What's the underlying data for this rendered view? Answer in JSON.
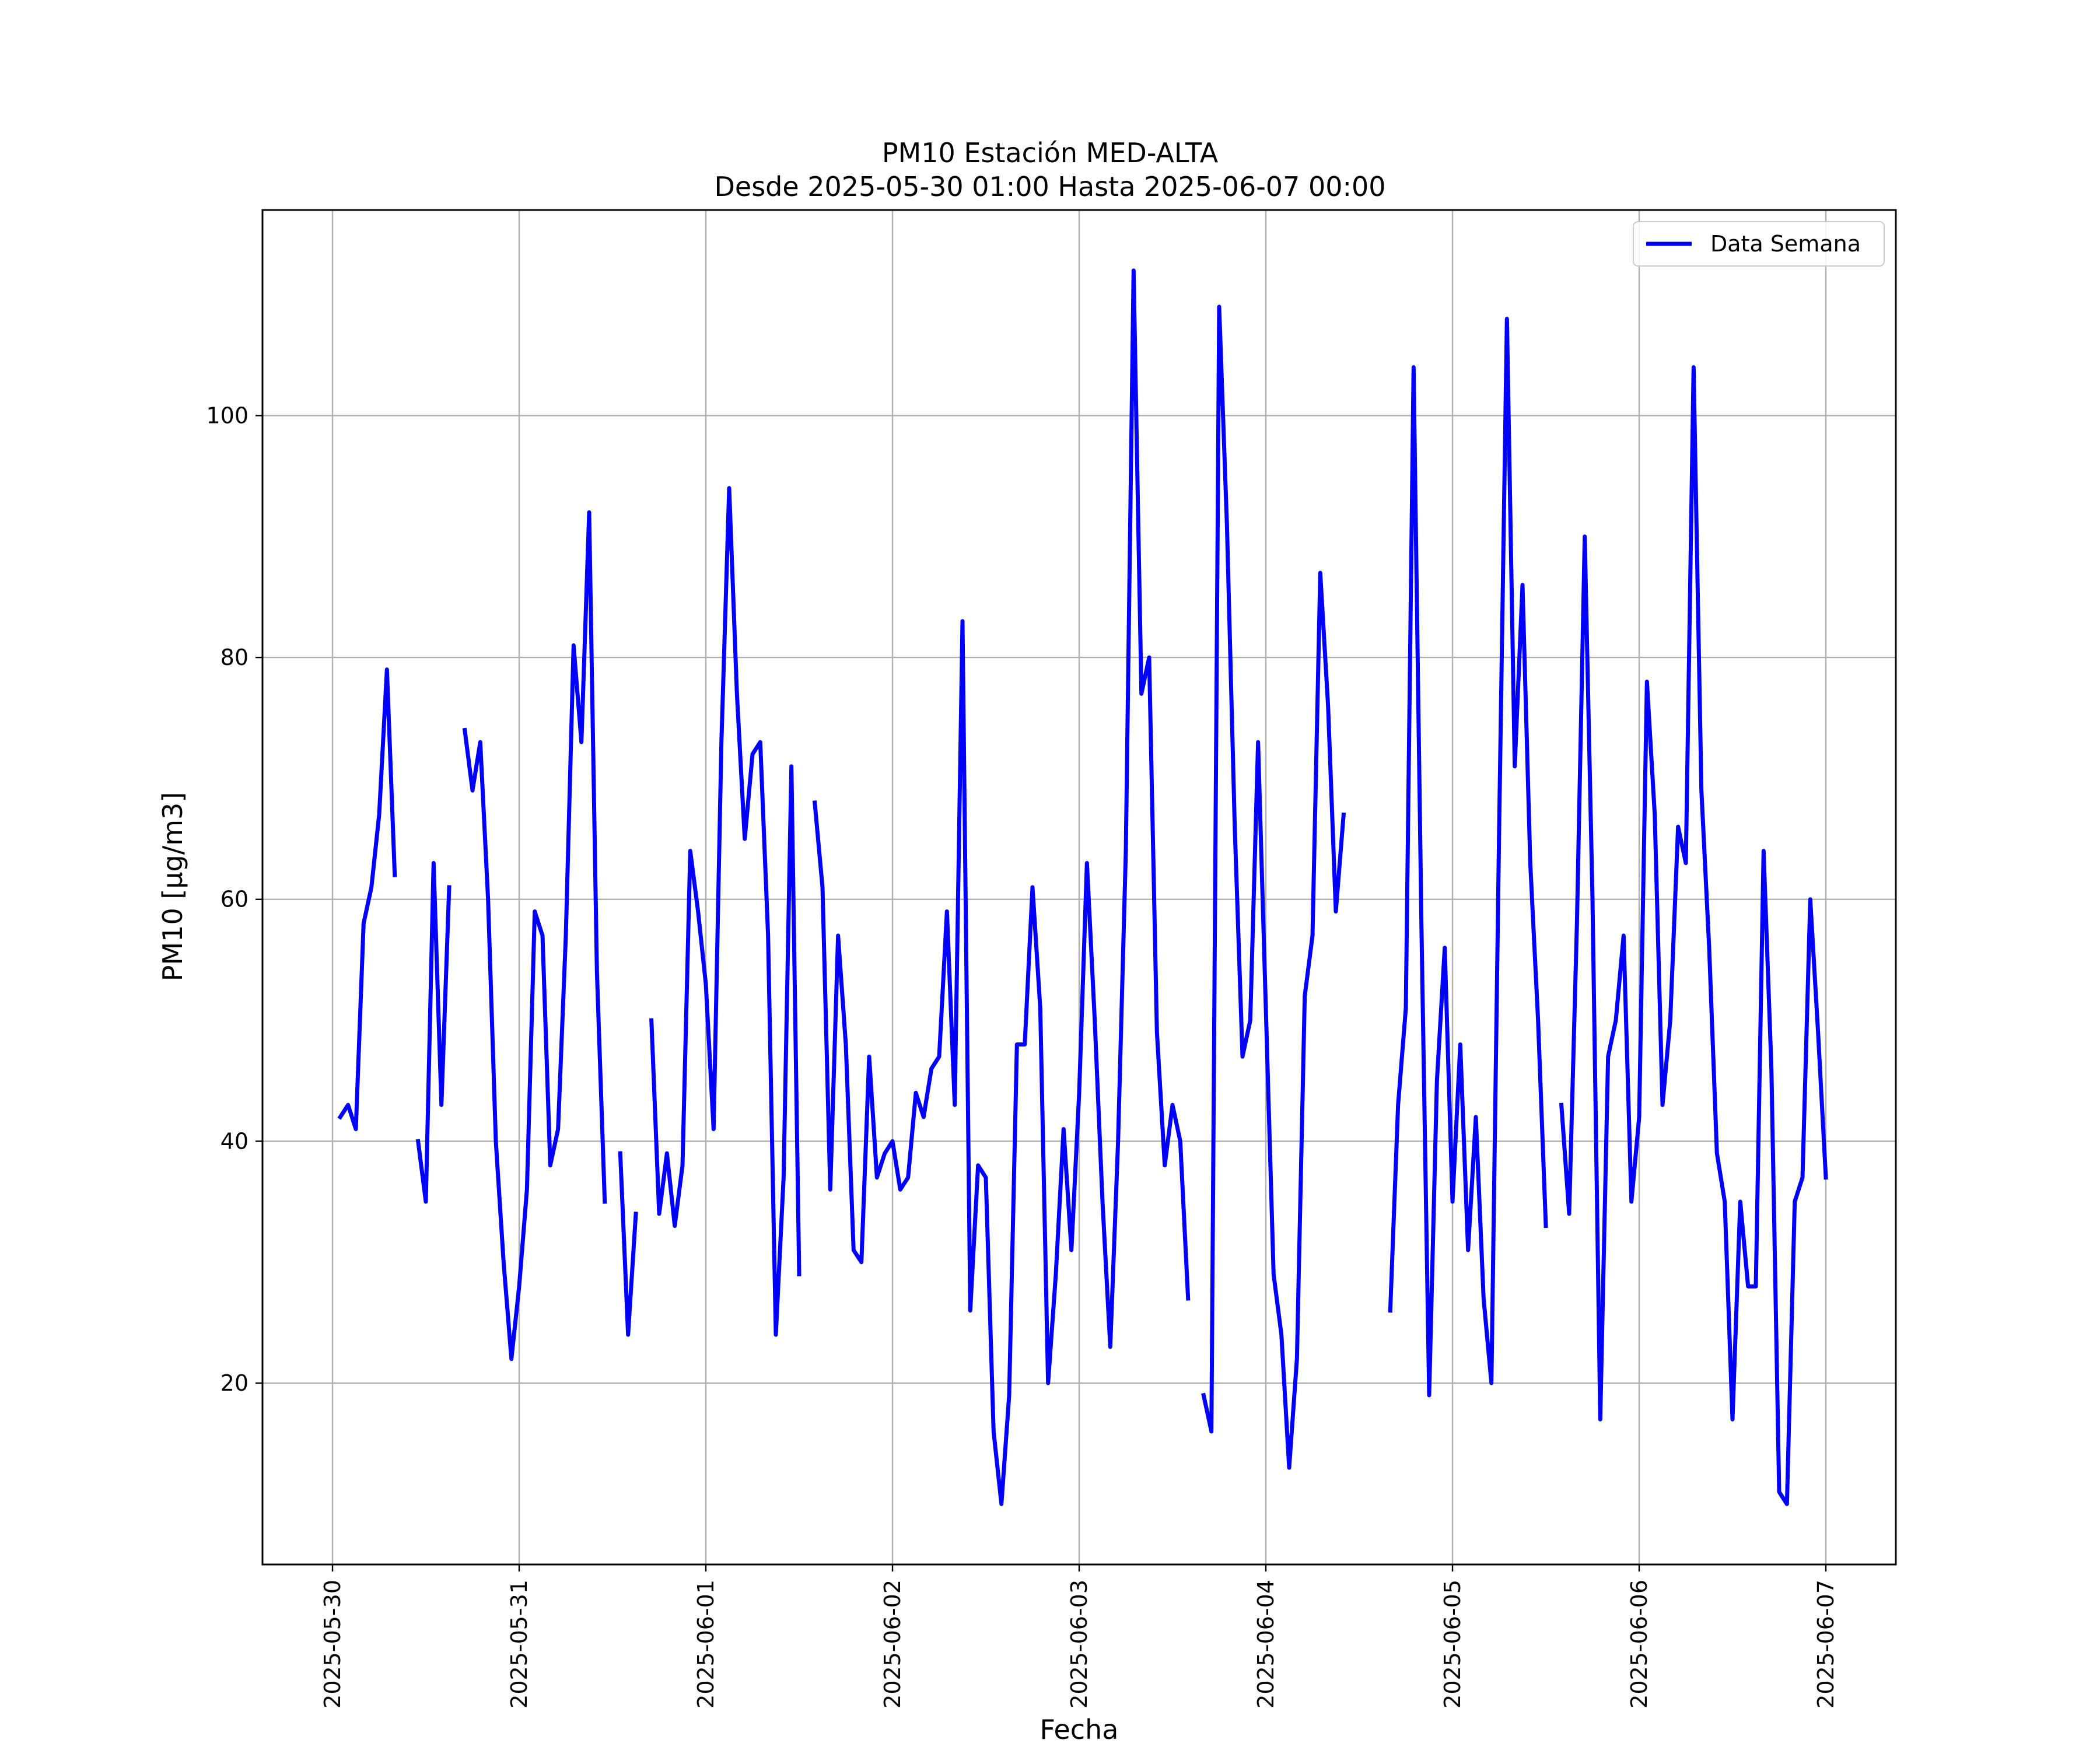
{
  "chart_data": {
    "type": "line",
    "title": "PM10 Estación MED-ALTA",
    "subtitle": "Desde 2025-05-30 01:00 Hasta 2025-06-07 00:00",
    "xlabel": "Fecha",
    "ylabel": "PM10 [μg/m3]",
    "x_ticks": [
      "2025-05-30",
      "2025-05-31",
      "2025-06-01",
      "2025-06-02",
      "2025-06-03",
      "2025-06-04",
      "2025-06-05",
      "2025-06-06",
      "2025-06-07"
    ],
    "y_ticks": [
      20,
      40,
      60,
      80,
      100
    ],
    "xlim": [
      "2025-05-29 15:00",
      "2025-06-07 09:00"
    ],
    "ylim": [
      5,
      117
    ],
    "grid": true,
    "legend_position": "top-right",
    "line_color": "#0000ff",
    "series": [
      {
        "name": "Data Semana",
        "points": [
          [
            "2025-05-30 01:00",
            42
          ],
          [
            "2025-05-30 02:00",
            43
          ],
          [
            "2025-05-30 03:00",
            41
          ],
          [
            "2025-05-30 04:00",
            58
          ],
          [
            "2025-05-30 05:00",
            61
          ],
          [
            "2025-05-30 06:00",
            67
          ],
          [
            "2025-05-30 07:00",
            79
          ],
          [
            "2025-05-30 08:00",
            62
          ],
          [
            "2025-05-30 09:00",
            null
          ],
          [
            "2025-05-30 10:00",
            null
          ],
          [
            "2025-05-30 11:00",
            40
          ],
          [
            "2025-05-30 12:00",
            35
          ],
          [
            "2025-05-30 13:00",
            63
          ],
          [
            "2025-05-30 14:00",
            43
          ],
          [
            "2025-05-30 15:00",
            61
          ],
          [
            "2025-05-30 16:00",
            null
          ],
          [
            "2025-05-30 17:00",
            74
          ],
          [
            "2025-05-30 18:00",
            69
          ],
          [
            "2025-05-30 19:00",
            73
          ],
          [
            "2025-05-30 20:00",
            60
          ],
          [
            "2025-05-30 21:00",
            40
          ],
          [
            "2025-05-30 22:00",
            30
          ],
          [
            "2025-05-30 23:00",
            22
          ],
          [
            "2025-05-31 00:00",
            28
          ],
          [
            "2025-05-31 01:00",
            36
          ],
          [
            "2025-05-31 02:00",
            59
          ],
          [
            "2025-05-31 03:00",
            57
          ],
          [
            "2025-05-31 04:00",
            38
          ],
          [
            "2025-05-31 05:00",
            41
          ],
          [
            "2025-05-31 06:00",
            57
          ],
          [
            "2025-05-31 07:00",
            81
          ],
          [
            "2025-05-31 08:00",
            73
          ],
          [
            "2025-05-31 09:00",
            92
          ],
          [
            "2025-05-31 10:00",
            54
          ],
          [
            "2025-05-31 11:00",
            35
          ],
          [
            "2025-05-31 12:00",
            null
          ],
          [
            "2025-05-31 13:00",
            39
          ],
          [
            "2025-05-31 14:00",
            24
          ],
          [
            "2025-05-31 15:00",
            34
          ],
          [
            "2025-05-31 16:00",
            null
          ],
          [
            "2025-05-31 17:00",
            50
          ],
          [
            "2025-05-31 18:00",
            34
          ],
          [
            "2025-05-31 19:00",
            39
          ],
          [
            "2025-05-31 20:00",
            33
          ],
          [
            "2025-05-31 21:00",
            38
          ],
          [
            "2025-05-31 22:00",
            64
          ],
          [
            "2025-05-31 23:00",
            59
          ],
          [
            "2025-06-01 00:00",
            53
          ],
          [
            "2025-06-01 01:00",
            41
          ],
          [
            "2025-06-01 02:00",
            73
          ],
          [
            "2025-06-01 03:00",
            94
          ],
          [
            "2025-06-01 04:00",
            77
          ],
          [
            "2025-06-01 05:00",
            65
          ],
          [
            "2025-06-01 06:00",
            72
          ],
          [
            "2025-06-01 07:00",
            73
          ],
          [
            "2025-06-01 08:00",
            57
          ],
          [
            "2025-06-01 09:00",
            24
          ],
          [
            "2025-06-01 10:00",
            37
          ],
          [
            "2025-06-01 11:00",
            71
          ],
          [
            "2025-06-01 12:00",
            29
          ],
          [
            "2025-06-01 13:00",
            null
          ],
          [
            "2025-06-01 14:00",
            68
          ],
          [
            "2025-06-01 15:00",
            61
          ],
          [
            "2025-06-01 16:00",
            36
          ],
          [
            "2025-06-01 17:00",
            57
          ],
          [
            "2025-06-01 18:00",
            48
          ],
          [
            "2025-06-01 19:00",
            31
          ],
          [
            "2025-06-01 20:00",
            30
          ],
          [
            "2025-06-01 21:00",
            47
          ],
          [
            "2025-06-01 22:00",
            37
          ],
          [
            "2025-06-01 23:00",
            39
          ],
          [
            "2025-06-02 00:00",
            40
          ],
          [
            "2025-06-02 01:00",
            36
          ],
          [
            "2025-06-02 02:00",
            37
          ],
          [
            "2025-06-02 03:00",
            44
          ],
          [
            "2025-06-02 04:00",
            42
          ],
          [
            "2025-06-02 05:00",
            46
          ],
          [
            "2025-06-02 06:00",
            47
          ],
          [
            "2025-06-02 07:00",
            59
          ],
          [
            "2025-06-02 08:00",
            43
          ],
          [
            "2025-06-02 09:00",
            83
          ],
          [
            "2025-06-02 10:00",
            26
          ],
          [
            "2025-06-02 11:00",
            38
          ],
          [
            "2025-06-02 12:00",
            37
          ],
          [
            "2025-06-02 13:00",
            16
          ],
          [
            "2025-06-02 14:00",
            10
          ],
          [
            "2025-06-02 15:00",
            19
          ],
          [
            "2025-06-02 16:00",
            48
          ],
          [
            "2025-06-02 17:00",
            48
          ],
          [
            "2025-06-02 18:00",
            61
          ],
          [
            "2025-06-02 19:00",
            51
          ],
          [
            "2025-06-02 20:00",
            20
          ],
          [
            "2025-06-02 21:00",
            29
          ],
          [
            "2025-06-02 22:00",
            41
          ],
          [
            "2025-06-02 23:00",
            31
          ],
          [
            "2025-06-03 00:00",
            44
          ],
          [
            "2025-06-03 01:00",
            63
          ],
          [
            "2025-06-03 02:00",
            50
          ],
          [
            "2025-06-03 03:00",
            35
          ],
          [
            "2025-06-03 04:00",
            23
          ],
          [
            "2025-06-03 05:00",
            40
          ],
          [
            "2025-06-03 06:00",
            64
          ],
          [
            "2025-06-03 07:00",
            112
          ],
          [
            "2025-06-03 08:00",
            77
          ],
          [
            "2025-06-03 09:00",
            80
          ],
          [
            "2025-06-03 10:00",
            49
          ],
          [
            "2025-06-03 11:00",
            38
          ],
          [
            "2025-06-03 12:00",
            43
          ],
          [
            "2025-06-03 13:00",
            40
          ],
          [
            "2025-06-03 14:00",
            27
          ],
          [
            "2025-06-03 15:00",
            null
          ],
          [
            "2025-06-03 16:00",
            19
          ],
          [
            "2025-06-03 17:00",
            16
          ],
          [
            "2025-06-03 18:00",
            109
          ],
          [
            "2025-06-03 19:00",
            91
          ],
          [
            "2025-06-03 20:00",
            66
          ],
          [
            "2025-06-03 21:00",
            47
          ],
          [
            "2025-06-03 22:00",
            50
          ],
          [
            "2025-06-03 23:00",
            73
          ],
          [
            "2025-06-04 00:00",
            51
          ],
          [
            "2025-06-04 01:00",
            29
          ],
          [
            "2025-06-04 02:00",
            24
          ],
          [
            "2025-06-04 03:00",
            13
          ],
          [
            "2025-06-04 04:00",
            22
          ],
          [
            "2025-06-04 05:00",
            52
          ],
          [
            "2025-06-04 06:00",
            57
          ],
          [
            "2025-06-04 07:00",
            87
          ],
          [
            "2025-06-04 08:00",
            76
          ],
          [
            "2025-06-04 09:00",
            59
          ],
          [
            "2025-06-04 10:00",
            67
          ],
          [
            "2025-06-04 11:00",
            null
          ],
          [
            "2025-06-04 12:00",
            null
          ],
          [
            "2025-06-04 13:00",
            null
          ],
          [
            "2025-06-04 14:00",
            null
          ],
          [
            "2025-06-04 15:00",
            null
          ],
          [
            "2025-06-04 16:00",
            26
          ],
          [
            "2025-06-04 17:00",
            43
          ],
          [
            "2025-06-04 18:00",
            51
          ],
          [
            "2025-06-04 19:00",
            104
          ],
          [
            "2025-06-04 20:00",
            58
          ],
          [
            "2025-06-04 21:00",
            19
          ],
          [
            "2025-06-04 22:00",
            45
          ],
          [
            "2025-06-04 23:00",
            56
          ],
          [
            "2025-06-05 00:00",
            35
          ],
          [
            "2025-06-05 01:00",
            48
          ],
          [
            "2025-06-05 02:00",
            31
          ],
          [
            "2025-06-05 03:00",
            42
          ],
          [
            "2025-06-05 04:00",
            27
          ],
          [
            "2025-06-05 05:00",
            20
          ],
          [
            "2025-06-05 06:00",
            66
          ],
          [
            "2025-06-05 07:00",
            108
          ],
          [
            "2025-06-05 08:00",
            71
          ],
          [
            "2025-06-05 09:00",
            86
          ],
          [
            "2025-06-05 10:00",
            63
          ],
          [
            "2025-06-05 11:00",
            50
          ],
          [
            "2025-06-05 12:00",
            33
          ],
          [
            "2025-06-05 13:00",
            null
          ],
          [
            "2025-06-05 14:00",
            43
          ],
          [
            "2025-06-05 15:00",
            34
          ],
          [
            "2025-06-05 16:00",
            58
          ],
          [
            "2025-06-05 17:00",
            90
          ],
          [
            "2025-06-05 18:00",
            60
          ],
          [
            "2025-06-05 19:00",
            17
          ],
          [
            "2025-06-05 20:00",
            47
          ],
          [
            "2025-06-05 21:00",
            50
          ],
          [
            "2025-06-05 22:00",
            57
          ],
          [
            "2025-06-05 23:00",
            35
          ],
          [
            "2025-06-06 00:00",
            42
          ],
          [
            "2025-06-06 01:00",
            78
          ],
          [
            "2025-06-06 02:00",
            67
          ],
          [
            "2025-06-06 03:00",
            43
          ],
          [
            "2025-06-06 04:00",
            50
          ],
          [
            "2025-06-06 05:00",
            66
          ],
          [
            "2025-06-06 06:00",
            63
          ],
          [
            "2025-06-06 07:00",
            104
          ],
          [
            "2025-06-06 08:00",
            69
          ],
          [
            "2025-06-06 09:00",
            56
          ],
          [
            "2025-06-06 10:00",
            39
          ],
          [
            "2025-06-06 11:00",
            35
          ],
          [
            "2025-06-06 12:00",
            17
          ],
          [
            "2025-06-06 13:00",
            35
          ],
          [
            "2025-06-06 14:00",
            28
          ],
          [
            "2025-06-06 15:00",
            28
          ],
          [
            "2025-06-06 16:00",
            64
          ],
          [
            "2025-06-06 17:00",
            46
          ],
          [
            "2025-06-06 18:00",
            11
          ],
          [
            "2025-06-06 19:00",
            10
          ],
          [
            "2025-06-06 20:00",
            35
          ],
          [
            "2025-06-06 21:00",
            37
          ],
          [
            "2025-06-06 22:00",
            60
          ],
          [
            "2025-06-06 23:00",
            49
          ],
          [
            "2025-06-07 00:00",
            37
          ]
        ]
      }
    ]
  }
}
